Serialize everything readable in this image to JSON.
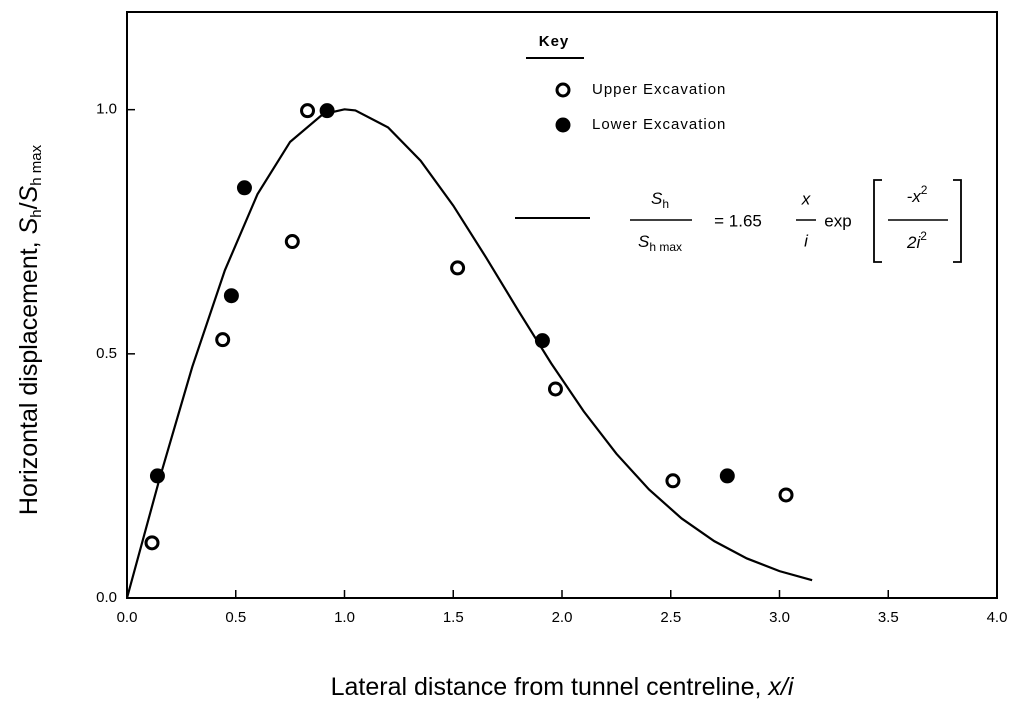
{
  "chart_data": {
    "type": "scatter",
    "xlabel": [
      "Lateral distance from tunnel centreline, ",
      "x/i"
    ],
    "ylabel": [
      "Horizontal displacement, ",
      "S",
      "h",
      "/",
      "S",
      "h max"
    ],
    "legend_title": "Key",
    "xlim": [
      0,
      4.0
    ],
    "ylim": [
      0,
      1.2
    ],
    "xticks": [
      {
        "value": 0,
        "label": "0.0"
      },
      0.5,
      {
        "value": 1,
        "label": "1.0"
      },
      1.5,
      {
        "value": 2,
        "label": "2.0"
      },
      2.5,
      {
        "value": 3,
        "label": "3.0"
      },
      3.5,
      {
        "value": 4,
        "label": "4.0"
      }
    ],
    "yticks": [
      {
        "value": 0,
        "label": "0.0"
      },
      0.5,
      {
        "value": 1,
        "label": "1.0"
      }
    ],
    "series": [
      {
        "name": "Upper Excavation",
        "marker": "open",
        "color": "#000000",
        "x": [
          0.115,
          0.44,
          0.76,
          0.83,
          1.52,
          1.97,
          2.51,
          3.03
        ],
        "values": [
          0.113,
          0.529,
          0.73,
          0.998,
          0.676,
          0.428,
          0.24,
          0.211
        ]
      },
      {
        "name": "Lower Excavation",
        "marker": "filled",
        "color": "#000000",
        "x": [
          0.14,
          0.48,
          0.54,
          0.92,
          1.91,
          2.76
        ],
        "values": [
          0.25,
          0.619,
          0.84,
          0.998,
          0.527,
          0.25
        ]
      },
      {
        "marker": "line",
        "color": "#000000",
        "x": [
          0,
          0.15,
          0.3,
          0.45,
          0.6,
          0.75,
          0.9,
          1.0,
          1.05,
          1.2,
          1.35,
          1.5,
          1.65,
          1.8,
          1.95,
          2.1,
          2.25,
          2.4,
          2.55,
          2.7,
          2.85,
          3.0,
          3.15
        ],
        "values": [
          0,
          0.2447,
          0.4732,
          0.671,
          0.827,
          0.9341,
          0.9905,
          1.0007,
          0.9984,
          0.9638,
          0.8955,
          0.8036,
          0.6979,
          0.5878,
          0.4807,
          0.3822,
          0.2955,
          0.2222,
          0.1629,
          0.1164,
          0.081,
          0.055,
          0.0364
        ]
      }
    ],
    "equation": {
      "lhs_numerator": [
        "S",
        "h"
      ],
      "lhs_denominator": [
        "S",
        "h max"
      ],
      "coefficient": "= 1.65",
      "frac_numerator": "x",
      "frac_denominator": "i",
      "function": "exp",
      "arg_numerator": [
        "-x",
        "2"
      ],
      "arg_denominator": [
        "2i",
        "2"
      ]
    }
  }
}
